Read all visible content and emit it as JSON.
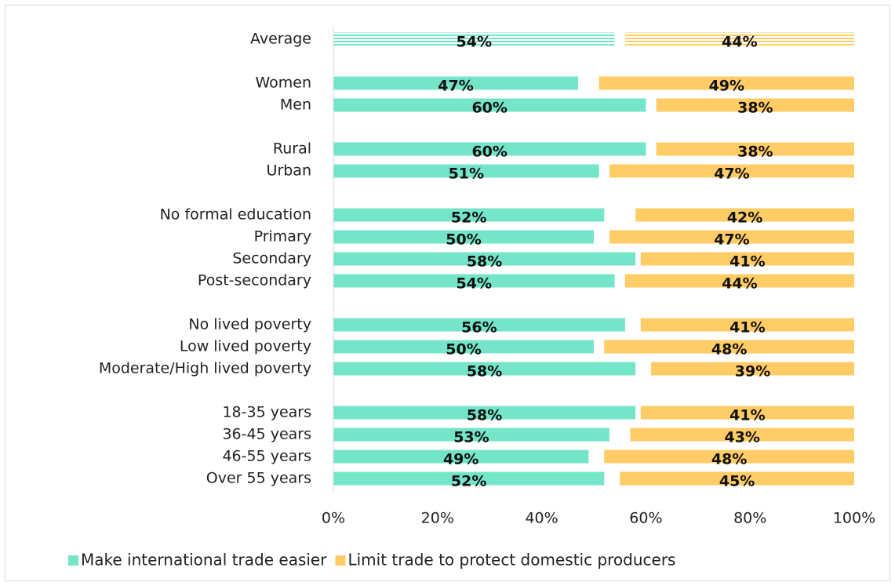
{
  "chart_data": {
    "type": "bar",
    "orientation": "horizontal",
    "categories": [
      "Average",
      null,
      "Women",
      "Men",
      null,
      "Rural",
      "Urban",
      null,
      "No formal education",
      "Primary",
      "Secondary",
      "Post-secondary",
      null,
      "No lived poverty",
      "Low lived poverty",
      "Moderate/High lived poverty",
      null,
      "18-35 years",
      "36-45 years",
      "46-55 years",
      "Over 55 years"
    ],
    "series": [
      {
        "name": "Make international trade easier",
        "color": "#74e5c8",
        "values": [
          54,
          null,
          47,
          60,
          null,
          60,
          51,
          null,
          52,
          50,
          58,
          54,
          null,
          56,
          50,
          58,
          null,
          58,
          53,
          49,
          52
        ],
        "value_labels": [
          "54%",
          null,
          "47%",
          "60%",
          null,
          "60%",
          "51%",
          null,
          "52%",
          "50%",
          "58%",
          "54%",
          null,
          "56%",
          "50%",
          "58%",
          null,
          "58%",
          "53%",
          "49%",
          "52%"
        ]
      },
      {
        "name": "Limit trade to protect domestic producers",
        "color": "#ffcc66",
        "values": [
          44,
          null,
          49,
          38,
          null,
          38,
          47,
          null,
          42,
          47,
          41,
          44,
          null,
          41,
          48,
          39,
          null,
          41,
          43,
          48,
          45
        ],
        "value_labels": [
          "44%",
          null,
          "49%",
          "38%",
          null,
          "38%",
          "47%",
          null,
          "42%",
          "47%",
          "41%",
          "44%",
          null,
          "41%",
          "48%",
          "39%",
          null,
          "41%",
          "43%",
          "48%",
          "45%"
        ]
      }
    ],
    "xlim": [
      0,
      100
    ],
    "xticks": [
      {
        "value": 0,
        "label": "0%"
      },
      {
        "value": 20,
        "label": "20%"
      },
      {
        "value": 40,
        "label": "40%"
      },
      {
        "value": 60,
        "label": "60%"
      },
      {
        "value": 80,
        "label": "80%"
      },
      {
        "value": 100,
        "label": "100%"
      }
    ],
    "legend": "bottom"
  }
}
